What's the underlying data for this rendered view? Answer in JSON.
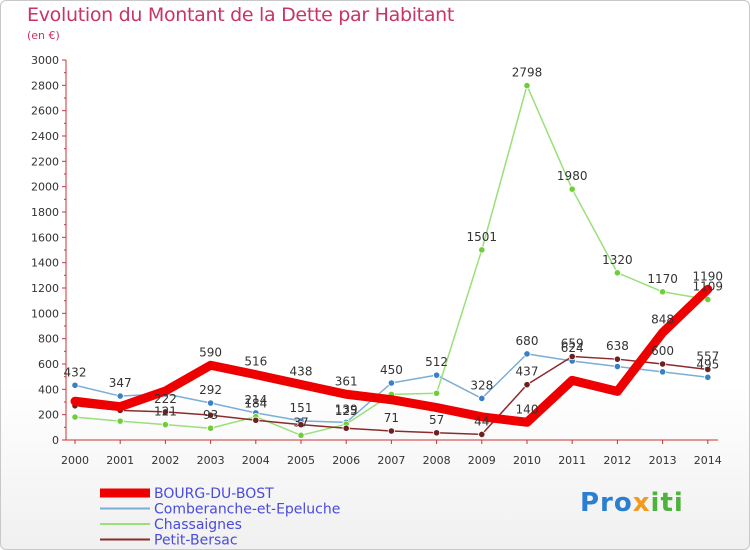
{
  "title": "Evolution du Montant de la Dette par Habitant",
  "unit_label": "(en €)",
  "logo": {
    "part1": "Pro",
    "part2": "x",
    "part3": "iti"
  },
  "chart_data": {
    "type": "line",
    "x": [
      "2000",
      "2001",
      "2002",
      "2003",
      "2004",
      "2005",
      "2006",
      "2007",
      "2008",
      "2009",
      "2010",
      "2011",
      "2012",
      "2013",
      "2014"
    ],
    "ylim": [
      0,
      3000
    ],
    "yticks": [
      0,
      200,
      400,
      600,
      800,
      1000,
      1200,
      1400,
      1600,
      1800,
      2000,
      2200,
      2400,
      2600,
      2800,
      3000
    ],
    "grid": false,
    "legend_position": "bottom-left",
    "series": [
      {
        "name": "BOURG-DU-BOST",
        "color": "#ee0000",
        "width": 9,
        "marker": false,
        "values": [
          306,
          263,
          387,
          590,
          516,
          438,
          361,
          318,
          256,
          183,
          140,
          471,
          384,
          848,
          1190
        ],
        "labels": [
          "",
          "",
          "",
          "590",
          "516",
          "438",
          "361",
          "",
          "",
          "",
          "140",
          "",
          "",
          "848",
          "1190"
        ]
      },
      {
        "name": "Comberanche-et-Epeluche",
        "color": "#7aaed6",
        "width": 1.5,
        "marker": true,
        "markerColor": "#3b7fc4",
        "values": [
          432,
          347,
          364,
          292,
          214,
          151,
          139,
          450,
          512,
          328,
          680,
          624,
          580,
          538,
          495
        ],
        "labels": [
          "432",
          "347",
          "",
          "292",
          "214",
          "151",
          "139",
          "450",
          "512",
          "328",
          "680",
          "624",
          "",
          "",
          "495"
        ]
      },
      {
        "name": "Chassaignes",
        "color": "#99e07a",
        "width": 1.5,
        "marker": true,
        "markerColor": "#6fcf3a",
        "values": [
          181,
          149,
          121,
          93,
          184,
          37,
          125,
          360,
          369,
          1501,
          2798,
          1980,
          1320,
          1170,
          1109
        ],
        "labels": [
          "",
          "",
          "121",
          "93",
          "184",
          "37",
          "125",
          "",
          "",
          "1501",
          "2798",
          "1980",
          "1320",
          "1170",
          "1109"
        ]
      },
      {
        "name": "Petit-Bersac",
        "color": "#8a2c2c",
        "width": 1.5,
        "marker": true,
        "markerColor": "#6e1f1f",
        "values": [
          270,
          234,
          222,
          196,
          156,
          121,
          93,
          71,
          57,
          44,
          437,
          659,
          638,
          600,
          557
        ],
        "labels": [
          "",
          "",
          "222",
          "",
          "",
          "",
          "",
          "71",
          "57",
          "44",
          "437",
          "659",
          "638",
          "600",
          "557"
        ]
      }
    ]
  }
}
